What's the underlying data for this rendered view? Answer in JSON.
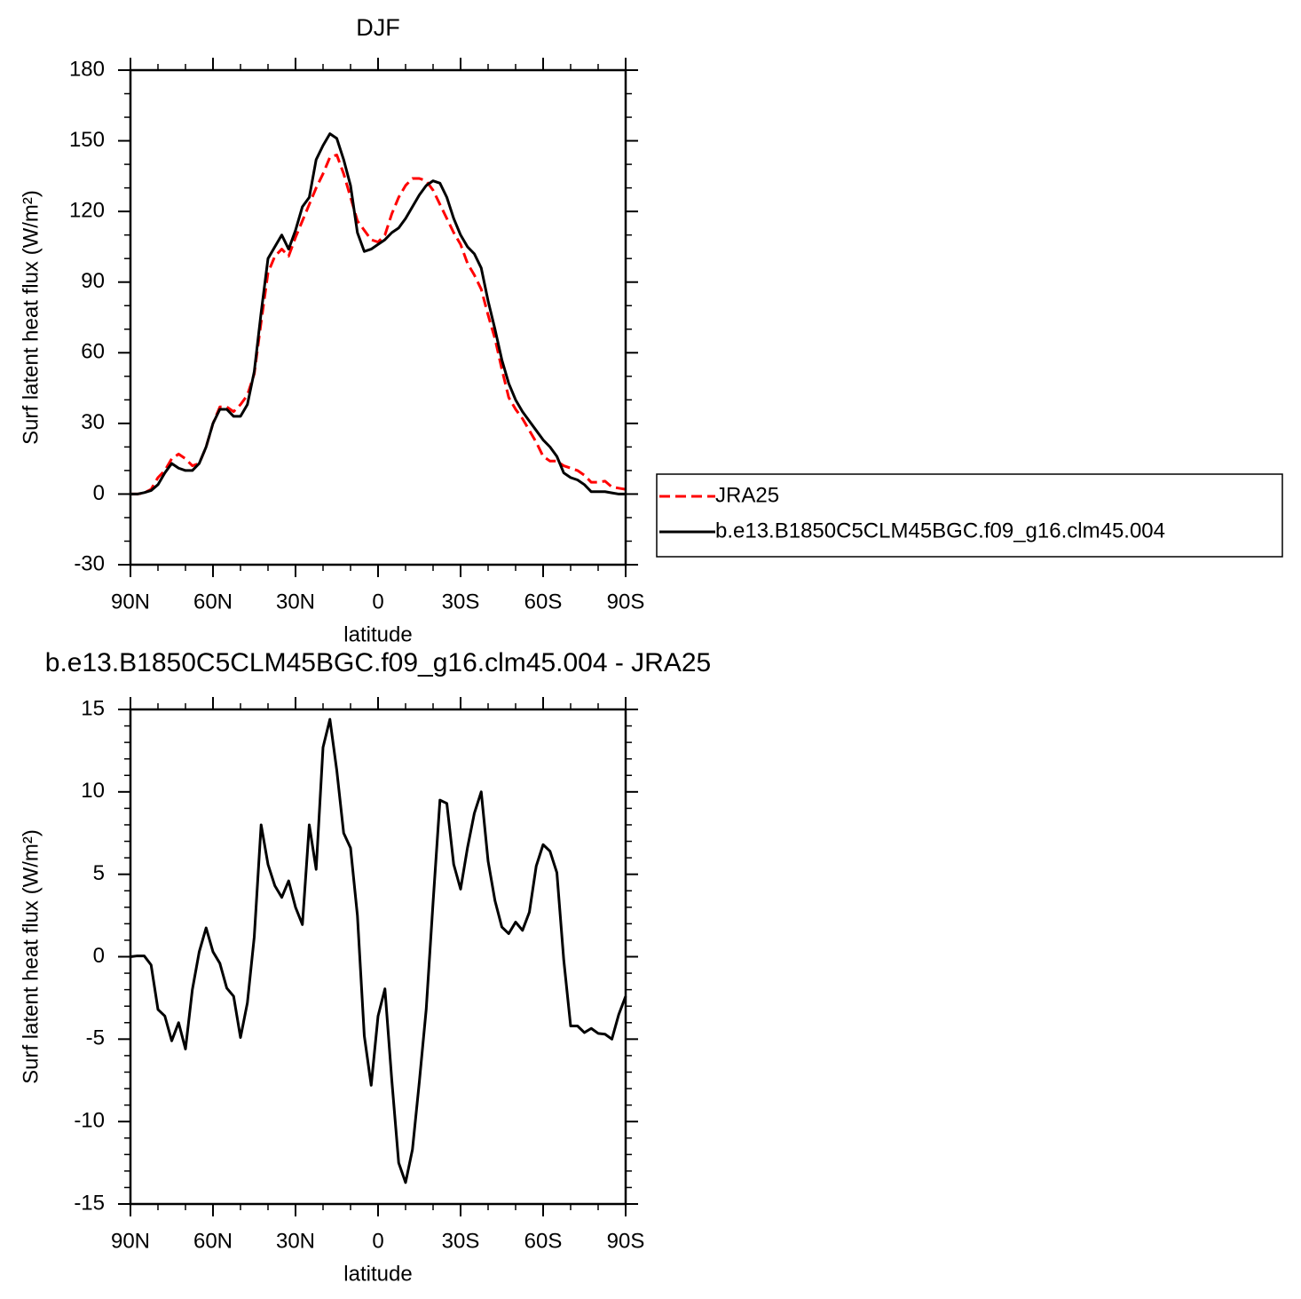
{
  "chart_data": [
    {
      "type": "line",
      "title": "DJF",
      "xlabel": "latitude",
      "ylabel": "Surf latent heat flux (W/m²)",
      "x": [
        90,
        87.5,
        85,
        82.5,
        80,
        77.5,
        75,
        72.5,
        70,
        67.5,
        65,
        62.5,
        60,
        57.5,
        55,
        52.5,
        50,
        47.5,
        45,
        42.5,
        40,
        37.5,
        35,
        32.5,
        30,
        27.5,
        25,
        22.5,
        20,
        17.5,
        15,
        12.5,
        10,
        7.5,
        5,
        2.5,
        0,
        -2.5,
        -5,
        -7.5,
        -10,
        -12.5,
        -15,
        -17.5,
        -20,
        -22.5,
        -25,
        -27.5,
        -30,
        -32.5,
        -35,
        -37.5,
        -40,
        -42.5,
        -45,
        -47.5,
        -50,
        -52.5,
        -55,
        -57.5,
        -60,
        -62.5,
        -65,
        -67.5,
        -70,
        -72.5,
        -75,
        -77.5,
        -80,
        -82.5,
        -85,
        -87.5,
        -90
      ],
      "series": [
        {
          "name": "JRA25",
          "color": "#ff0000",
          "linestyle": "dashed",
          "values": [
            0,
            0,
            0.5,
            2,
            7,
            10,
            15,
            17,
            15,
            12,
            13,
            20,
            30,
            37,
            37,
            35,
            38,
            42,
            51,
            73,
            94,
            101,
            104,
            101,
            109,
            116,
            123,
            130,
            136,
            143,
            144,
            136,
            126,
            116,
            112,
            108,
            107,
            110,
            119,
            126,
            131,
            134,
            134,
            133,
            129,
            123,
            117,
            111,
            106,
            98,
            93,
            87,
            76,
            66,
            53,
            41,
            36,
            32,
            27,
            22,
            16,
            14,
            14,
            12,
            11,
            10,
            8,
            5,
            5,
            5.5,
            3,
            2.5,
            2
          ]
        },
        {
          "name": "b.e13.B1850C5CLM45BGC.f09_g16.clm45.004",
          "color": "#000000",
          "linestyle": "solid",
          "values": [
            0,
            0,
            0.6,
            1.5,
            4,
            9,
            13,
            11,
            10,
            10,
            13,
            20,
            30,
            36,
            36,
            33,
            33,
            38,
            52,
            77,
            100,
            105,
            110,
            104,
            112,
            122,
            126,
            142,
            148,
            153,
            151,
            142,
            131,
            111,
            103,
            104,
            106,
            108,
            111,
            113,
            117,
            122,
            127,
            131,
            133,
            132,
            126,
            117,
            110,
            105,
            102,
            96,
            82,
            70,
            57,
            47,
            40,
            35,
            31,
            27,
            23,
            20,
            16,
            9,
            7,
            6,
            4,
            1,
            1,
            1,
            0.5,
            0,
            0
          ]
        }
      ],
      "ylim": [
        -30,
        180
      ],
      "yticks": [
        -30,
        0,
        30,
        60,
        90,
        120,
        150,
        180
      ],
      "xlim": [
        90,
        -90
      ],
      "xticks": [
        {
          "value": 90,
          "label": "90N"
        },
        {
          "value": 60,
          "label": "60N"
        },
        {
          "value": 30,
          "label": "30N"
        },
        0,
        {
          "value": -30,
          "label": "30S"
        },
        {
          "value": -60,
          "label": "60S"
        },
        {
          "value": -90,
          "label": "90S"
        }
      ],
      "legend": "outside right"
    },
    {
      "type": "line",
      "title": "b.e13.B1850C5CLM45BGC.f09_g16.clm45.004 - JRA25",
      "xlabel": "latitude",
      "ylabel": "Surf latent heat flux (W/m²)",
      "x": [
        90,
        87.5,
        85,
        82.5,
        80,
        77.5,
        75,
        72.5,
        70,
        67.5,
        65,
        62.5,
        60,
        57.5,
        55,
        52.5,
        50,
        47.5,
        45,
        42.5,
        40,
        37.5,
        35,
        32.5,
        30,
        27.5,
        25,
        22.5,
        20,
        17.5,
        15,
        12.5,
        10,
        7.5,
        5,
        2.5,
        0,
        -2.5,
        -5,
        -7.5,
        -10,
        -12.5,
        -15,
        -17.5,
        -20,
        -22.5,
        -25,
        -27.5,
        -30,
        -32.5,
        -35,
        -37.5,
        -40,
        -42.5,
        -45,
        -47.5,
        -50,
        -52.5,
        -55,
        -57.5,
        -60,
        -62.5,
        -65,
        -67.5,
        -70,
        -72.5,
        -75,
        -77.5,
        -80,
        -82.5,
        -85,
        -87.5,
        -90
      ],
      "series": [
        {
          "color": "#000000",
          "linestyle": "solid",
          "values": [
            0,
            0.05,
            0.05,
            -0.5,
            -3.2,
            -3.6,
            -5.1,
            -4,
            -5.6,
            -2,
            0.3,
            1.75,
            0.3,
            -0.4,
            -1.9,
            -2.4,
            -4.9,
            -2.8,
            1.2,
            8,
            5.6,
            4.3,
            3.6,
            4.6,
            3,
            1.95,
            8,
            5.3,
            12.7,
            14.4,
            11.3,
            7.5,
            6.6,
            2.5,
            -4.8,
            -7.8,
            -3.6,
            -1.95,
            -7.5,
            -12.5,
            -13.7,
            -11.7,
            -7.6,
            -3.2,
            3.3,
            9.5,
            9.3,
            5.6,
            4.1,
            6.6,
            8.7,
            10,
            5.8,
            3.4,
            1.8,
            1.4,
            2.1,
            1.6,
            2.7,
            5.5,
            6.8,
            6.4,
            5.1,
            -0.2,
            -4.2,
            -4.2,
            -4.6,
            -4.35,
            -4.65,
            -4.7,
            -5,
            -3.5,
            -2.4
          ]
        }
      ],
      "ylim": [
        -15,
        15
      ],
      "yticks": [
        -15,
        -10,
        -5,
        0,
        5,
        10,
        15
      ],
      "xlim": [
        90,
        -90
      ],
      "xticks": [
        {
          "value": 90,
          "label": "90N"
        },
        {
          "value": 60,
          "label": "60N"
        },
        {
          "value": 30,
          "label": "30N"
        },
        0,
        {
          "value": -30,
          "label": "30S"
        },
        {
          "value": -60,
          "label": "60S"
        },
        {
          "value": -90,
          "label": "90S"
        }
      ]
    }
  ]
}
